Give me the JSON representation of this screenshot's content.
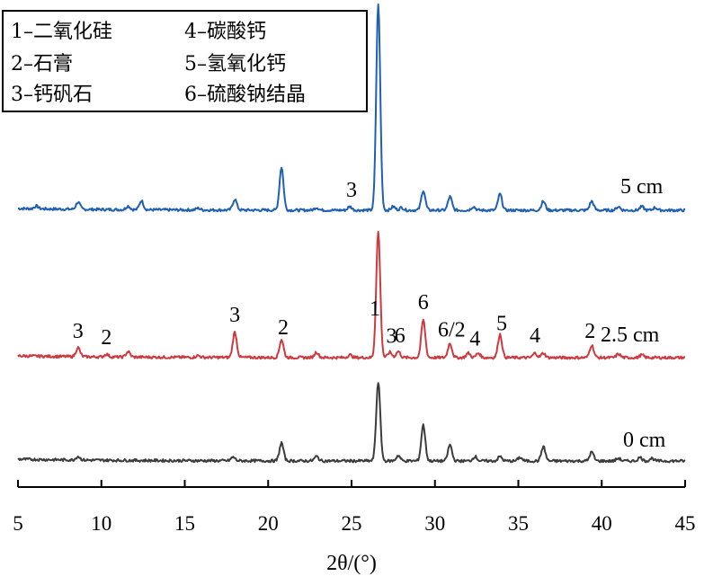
{
  "chart_data": {
    "type": "line",
    "xlabel": "2θ/(°)",
    "xlim": [
      5,
      45
    ],
    "x_ticks": [
      "5",
      "10",
      "15",
      "20",
      "25",
      "30",
      "35",
      "40",
      "45"
    ],
    "y_axis_shown": false,
    "legend": {
      "placement": "top-left",
      "entries": [
        "1–二氧化硅",
        "2–石膏",
        "3–钙矾石",
        "4–碳酸钙",
        "5–氢氧化钙",
        "6–硫酸钠结晶"
      ]
    },
    "series": [
      {
        "name": "5 cm",
        "color": "#1f5fb4",
        "baseline": 0.0,
        "peaks": [
          {
            "x": 6.1,
            "h": 3
          },
          {
            "x": 8.6,
            "h": 8
          },
          {
            "x": 11.6,
            "h": 4
          },
          {
            "x": 12.4,
            "h": 10
          },
          {
            "x": 15.8,
            "h": 2
          },
          {
            "x": 18.0,
            "h": 12
          },
          {
            "x": 20.8,
            "h": 48
          },
          {
            "x": 22.9,
            "h": 3
          },
          {
            "x": 24.9,
            "h": 4
          },
          {
            "x": 26.6,
            "h": 230
          },
          {
            "x": 27.5,
            "h": 4
          },
          {
            "x": 28.0,
            "h": 3
          },
          {
            "x": 29.3,
            "h": 22
          },
          {
            "x": 30.9,
            "h": 15
          },
          {
            "x": 32.3,
            "h": 4
          },
          {
            "x": 33.9,
            "h": 18
          },
          {
            "x": 36.5,
            "h": 10
          },
          {
            "x": 39.4,
            "h": 10
          },
          {
            "x": 41.0,
            "h": 4
          },
          {
            "x": 42.4,
            "h": 4
          },
          {
            "x": 43.2,
            "h": 3
          }
        ],
        "peak_labels": [
          {
            "x": 25.0,
            "text": "3"
          }
        ]
      },
      {
        "name": "2.5 cm",
        "color": "#cc3a3f",
        "peaks": [
          {
            "x": 8.6,
            "h": 10
          },
          {
            "x": 10.3,
            "h": 3
          },
          {
            "x": 11.6,
            "h": 6
          },
          {
            "x": 15.8,
            "h": 2
          },
          {
            "x": 18.0,
            "h": 28
          },
          {
            "x": 20.8,
            "h": 20
          },
          {
            "x": 22.9,
            "h": 6
          },
          {
            "x": 24.9,
            "h": 3
          },
          {
            "x": 26.6,
            "h": 140
          },
          {
            "x": 27.3,
            "h": 6
          },
          {
            "x": 27.8,
            "h": 7
          },
          {
            "x": 29.3,
            "h": 42
          },
          {
            "x": 30.9,
            "h": 16
          },
          {
            "x": 32.0,
            "h": 5
          },
          {
            "x": 32.6,
            "h": 5
          },
          {
            "x": 33.9,
            "h": 26
          },
          {
            "x": 36.0,
            "h": 5
          },
          {
            "x": 36.5,
            "h": 5
          },
          {
            "x": 39.4,
            "h": 14
          },
          {
            "x": 41.0,
            "h": 4
          },
          {
            "x": 42.4,
            "h": 3
          }
        ],
        "peak_labels": [
          {
            "x": 8.6,
            "text": "3"
          },
          {
            "x": 10.3,
            "text": "2"
          },
          {
            "x": 18.0,
            "text": "3"
          },
          {
            "x": 20.9,
            "text": "2"
          },
          {
            "x": 26.4,
            "text": "1"
          },
          {
            "x": 27.4,
            "text": "3"
          },
          {
            "x": 27.9,
            "text": "6"
          },
          {
            "x": 29.3,
            "text": "6"
          },
          {
            "x": 31.0,
            "text": "6/2"
          },
          {
            "x": 32.4,
            "text": "4"
          },
          {
            "x": 34.0,
            "text": "5"
          },
          {
            "x": 36.0,
            "text": "4"
          },
          {
            "x": 39.3,
            "text": "2"
          }
        ]
      },
      {
        "name": "0 cm",
        "color": "#3c3c3c",
        "peaks": [
          {
            "x": 8.6,
            "h": 4
          },
          {
            "x": 17.9,
            "h": 4
          },
          {
            "x": 20.8,
            "h": 20
          },
          {
            "x": 22.9,
            "h": 5
          },
          {
            "x": 26.6,
            "h": 88
          },
          {
            "x": 27.8,
            "h": 6
          },
          {
            "x": 29.3,
            "h": 40
          },
          {
            "x": 30.9,
            "h": 18
          },
          {
            "x": 32.4,
            "h": 5
          },
          {
            "x": 33.9,
            "h": 5
          },
          {
            "x": 35.1,
            "h": 4
          },
          {
            "x": 36.5,
            "h": 16
          },
          {
            "x": 39.4,
            "h": 10
          },
          {
            "x": 41.0,
            "h": 3
          },
          {
            "x": 42.3,
            "h": 4
          },
          {
            "x": 43.0,
            "h": 3
          }
        ],
        "peak_labels": []
      }
    ]
  }
}
